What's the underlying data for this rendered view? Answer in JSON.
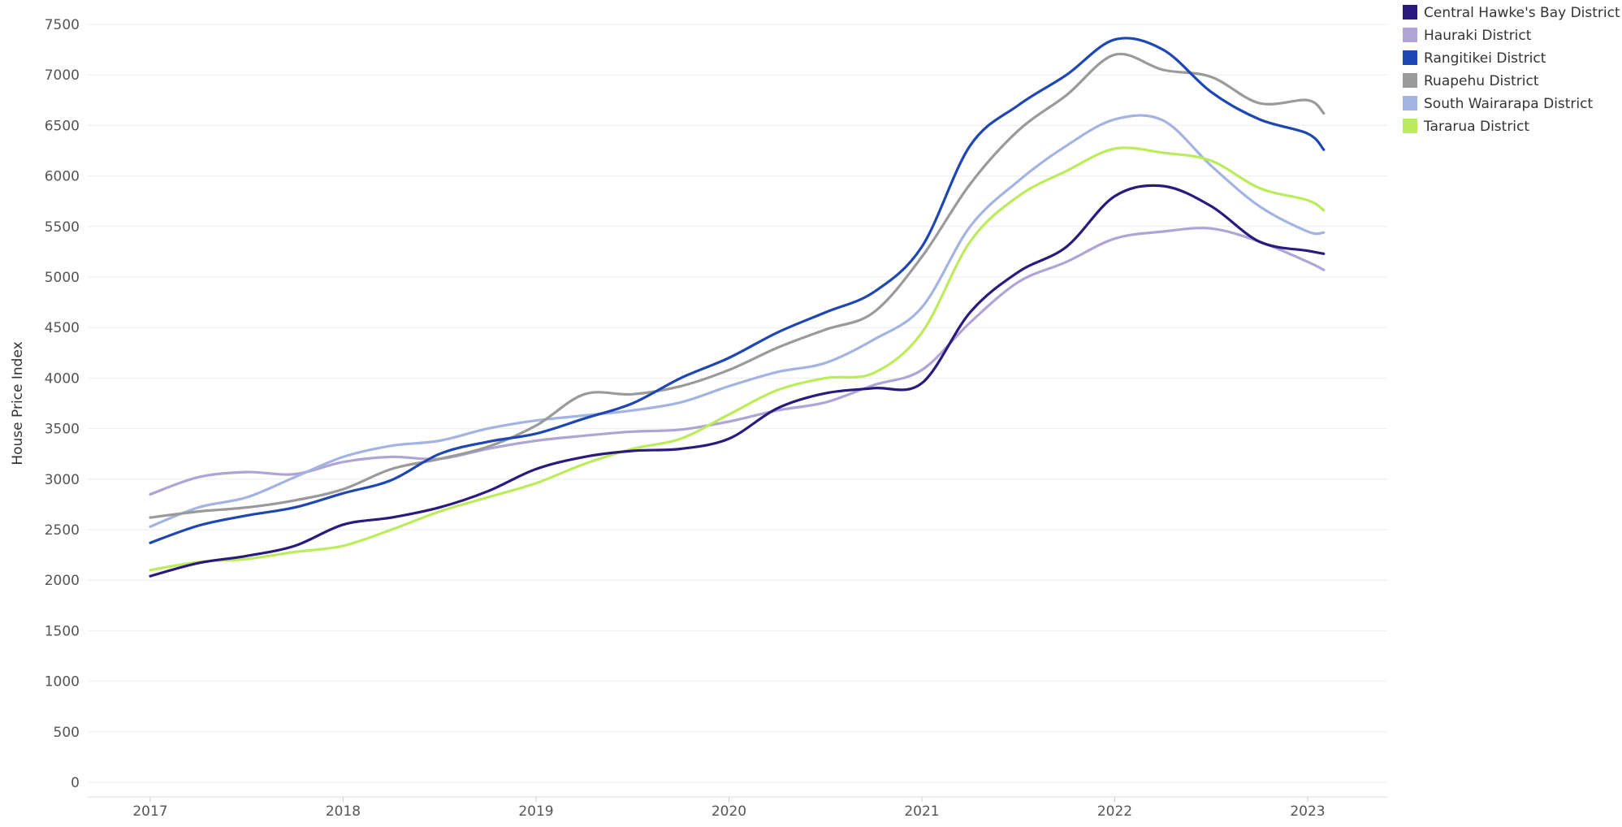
{
  "chart_data": {
    "type": "line",
    "title": "",
    "xlabel": "",
    "ylabel": "House Price Index",
    "ylim": [
      0,
      7500
    ],
    "yticks": [
      0,
      500,
      1000,
      1500,
      2000,
      2500,
      3000,
      3500,
      4000,
      4500,
      5000,
      5500,
      6000,
      6500,
      7000,
      7500
    ],
    "xticks": [
      "2017",
      "2018",
      "2019",
      "2020",
      "2021",
      "2022",
      "2023"
    ],
    "xrange": [
      "2017-01",
      "2023-02"
    ],
    "grid": "horizontal",
    "legend_position": "top-right",
    "x": [
      "2017-01",
      "2017-04",
      "2017-07",
      "2017-10",
      "2018-01",
      "2018-04",
      "2018-07",
      "2018-10",
      "2019-01",
      "2019-04",
      "2019-07",
      "2019-10",
      "2020-01",
      "2020-04",
      "2020-07",
      "2020-10",
      "2021-01",
      "2021-04",
      "2021-07",
      "2021-10",
      "2022-01",
      "2022-04",
      "2022-07",
      "2022-10",
      "2023-01",
      "2023-02"
    ],
    "series": [
      {
        "name": "Central Hawke's Bay District",
        "color": "#2a1a7e",
        "values": [
          2040,
          2170,
          2240,
          2340,
          2550,
          2620,
          2720,
          2880,
          3100,
          3220,
          3280,
          3300,
          3400,
          3700,
          3850,
          3900,
          3950,
          4650,
          5050,
          5300,
          5800,
          5900,
          5700,
          5350,
          5260,
          5230
        ]
      },
      {
        "name": "Hauraki District",
        "color": "#b0a4d6",
        "values": [
          2850,
          3020,
          3070,
          3050,
          3170,
          3220,
          3200,
          3300,
          3380,
          3430,
          3470,
          3490,
          3570,
          3680,
          3760,
          3930,
          4080,
          4550,
          4950,
          5150,
          5380,
          5450,
          5480,
          5350,
          5150,
          5070
        ]
      },
      {
        "name": "Rangitikei District",
        "color": "#1e46b4",
        "values": [
          2370,
          2540,
          2640,
          2720,
          2860,
          2990,
          3250,
          3370,
          3450,
          3600,
          3750,
          4000,
          4200,
          4450,
          4650,
          4850,
          5300,
          6300,
          6700,
          7000,
          7350,
          7250,
          6830,
          6560,
          6420,
          6260
        ]
      },
      {
        "name": "Ruapehu District",
        "color": "#9a9a9a",
        "values": [
          2620,
          2680,
          2720,
          2790,
          2900,
          3100,
          3200,
          3320,
          3530,
          3840,
          3840,
          3920,
          4080,
          4300,
          4480,
          4650,
          5200,
          5920,
          6450,
          6800,
          7200,
          7050,
          6980,
          6720,
          6750,
          6620
        ]
      },
      {
        "name": "South Wairarapa District",
        "color": "#a3b4e2",
        "values": [
          2530,
          2720,
          2820,
          3020,
          3220,
          3330,
          3380,
          3500,
          3580,
          3630,
          3680,
          3760,
          3920,
          4060,
          4150,
          4380,
          4700,
          5500,
          5950,
          6300,
          6560,
          6550,
          6100,
          5700,
          5450,
          5440
        ]
      },
      {
        "name": "Tararua District",
        "color": "#bbec5a",
        "values": [
          2100,
          2180,
          2210,
          2280,
          2340,
          2500,
          2680,
          2820,
          2960,
          3150,
          3300,
          3400,
          3640,
          3880,
          4000,
          4050,
          4450,
          5350,
          5800,
          6050,
          6270,
          6230,
          6150,
          5880,
          5760,
          5660
        ]
      }
    ]
  }
}
